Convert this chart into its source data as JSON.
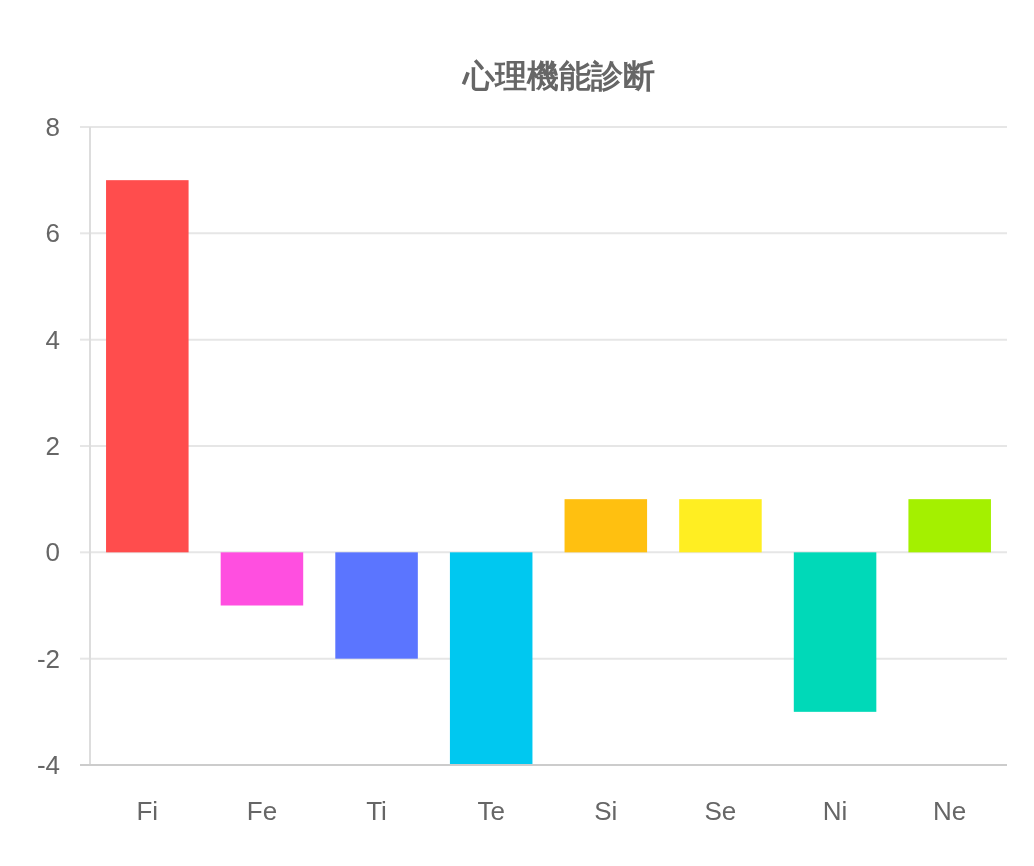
{
  "chart_data": {
    "type": "bar",
    "title": "心理機能診断",
    "categories": [
      "Fi",
      "Fe",
      "Ti",
      "Te",
      "Si",
      "Se",
      "Ni",
      "Ne"
    ],
    "values": [
      7,
      -1,
      -2,
      -4,
      1,
      1,
      -3,
      1
    ],
    "colors": [
      "#ff4d4d",
      "#ff4fe0",
      "#5b75ff",
      "#00c8f0",
      "#ffc010",
      "#ffee22",
      "#00d9b8",
      "#a4f000"
    ],
    "ylim": [
      -4,
      8
    ],
    "yticks": [
      -4,
      -2,
      0,
      2,
      4,
      6,
      8
    ],
    "grid": "y"
  }
}
